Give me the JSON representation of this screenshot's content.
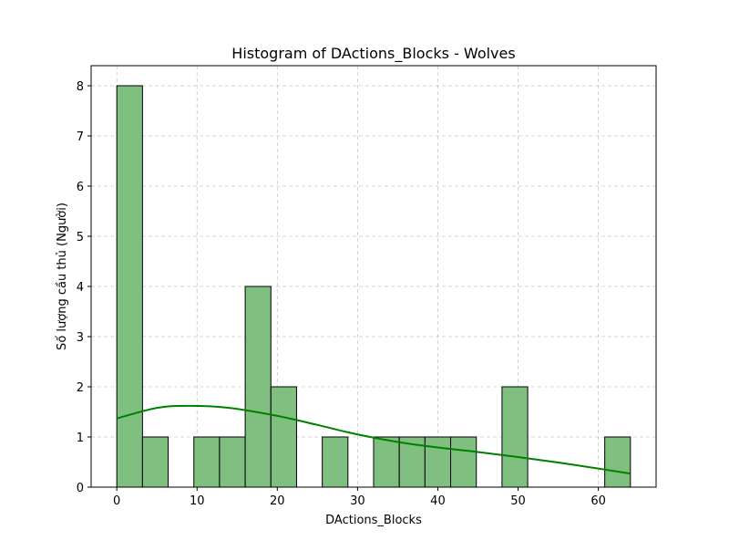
{
  "chart_data": {
    "type": "bar",
    "title": "Histogram of DActions_Blocks - Wolves",
    "xlabel": "DActions_Blocks",
    "ylabel": "Số lượng cầu thủ (Người)",
    "xlim": [
      -3.2,
      67.2
    ],
    "ylim": [
      0,
      8.4
    ],
    "xticks": [
      0,
      10,
      20,
      30,
      40,
      50,
      60
    ],
    "yticks": [
      0,
      1,
      2,
      3,
      4,
      5,
      6,
      7,
      8
    ],
    "grid": true,
    "bar_color": "#7fbf7f",
    "bar_edge_color": "#000000",
    "kde_color": "#008000",
    "bins": [
      {
        "start": 0.0,
        "end": 3.2,
        "count": 8
      },
      {
        "start": 3.2,
        "end": 6.4,
        "count": 1
      },
      {
        "start": 6.4,
        "end": 9.6,
        "count": 0
      },
      {
        "start": 9.6,
        "end": 12.8,
        "count": 1
      },
      {
        "start": 12.8,
        "end": 16.0,
        "count": 1
      },
      {
        "start": 16.0,
        "end": 19.2,
        "count": 4
      },
      {
        "start": 19.2,
        "end": 22.4,
        "count": 2
      },
      {
        "start": 22.4,
        "end": 25.6,
        "count": 0
      },
      {
        "start": 25.6,
        "end": 28.8,
        "count": 1
      },
      {
        "start": 28.8,
        "end": 32.0,
        "count": 0
      },
      {
        "start": 32.0,
        "end": 35.2,
        "count": 1
      },
      {
        "start": 35.2,
        "end": 38.4,
        "count": 1
      },
      {
        "start": 38.4,
        "end": 41.6,
        "count": 1
      },
      {
        "start": 41.6,
        "end": 44.8,
        "count": 1
      },
      {
        "start": 44.8,
        "end": 48.0,
        "count": 0
      },
      {
        "start": 48.0,
        "end": 51.2,
        "count": 2
      },
      {
        "start": 51.2,
        "end": 54.4,
        "count": 0
      },
      {
        "start": 54.4,
        "end": 57.6,
        "count": 0
      },
      {
        "start": 57.6,
        "end": 60.8,
        "count": 0
      },
      {
        "start": 60.8,
        "end": 64.0,
        "count": 1
      }
    ],
    "kde": {
      "x": [
        0,
        5,
        9,
        14,
        20,
        25,
        30,
        35,
        40,
        45,
        50,
        55,
        60,
        64
      ],
      "y": [
        1.37,
        1.58,
        1.62,
        1.58,
        1.42,
        1.24,
        1.05,
        0.9,
        0.79,
        0.7,
        0.6,
        0.49,
        0.37,
        0.27
      ]
    }
  }
}
